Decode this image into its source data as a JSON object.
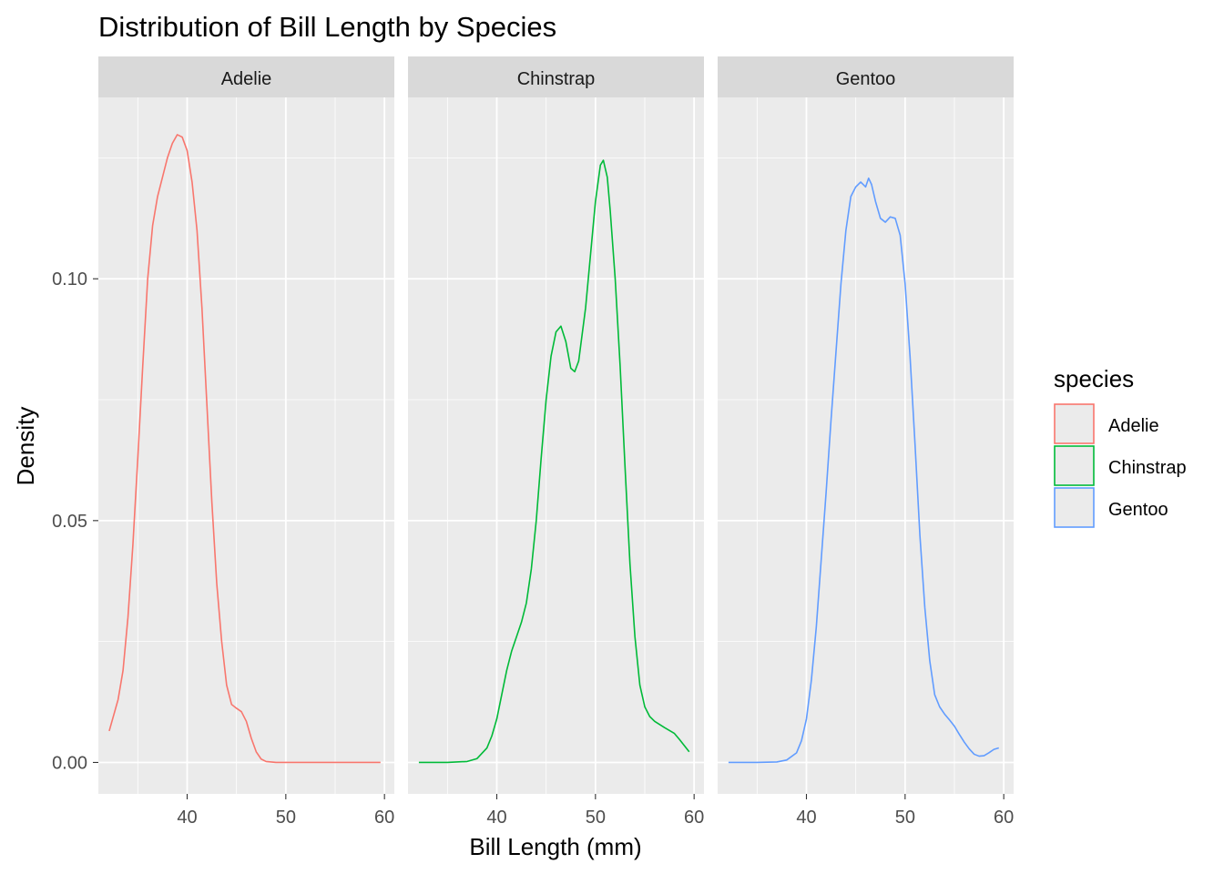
{
  "chart_data": {
    "type": "line",
    "title": "Distribution of Bill Length by Species",
    "xlabel": "Bill Length (mm)",
    "ylabel": "Density",
    "xlim": [
      31,
      61
    ],
    "ylim": [
      -0.0065,
      0.1375
    ],
    "x_ticks": [
      40,
      50,
      60
    ],
    "x_minor_ticks": [
      35,
      45,
      55
    ],
    "y_ticks": [
      0.0,
      0.05,
      0.1
    ],
    "y_tick_labels": [
      "0.00",
      "0.05",
      "0.10"
    ],
    "y_minor_ticks": [
      0.025,
      0.075,
      0.125
    ],
    "grid": true,
    "facet_by": "species",
    "legend": {
      "title": "species",
      "position": "right"
    },
    "series": [
      {
        "name": "Adelie",
        "color": "#F8766D",
        "points": [
          [
            32.1,
            0.0065
          ],
          [
            33.0,
            0.013
          ],
          [
            33.5,
            0.019
          ],
          [
            34.0,
            0.03
          ],
          [
            34.5,
            0.045
          ],
          [
            35.0,
            0.063
          ],
          [
            35.5,
            0.082
          ],
          [
            36.0,
            0.1
          ],
          [
            36.5,
            0.111
          ],
          [
            37.0,
            0.117
          ],
          [
            37.5,
            0.121
          ],
          [
            38.0,
            0.125
          ],
          [
            38.5,
            0.128
          ],
          [
            39.0,
            0.1298
          ],
          [
            39.5,
            0.1293
          ],
          [
            40.0,
            0.1265
          ],
          [
            40.5,
            0.12
          ],
          [
            41.0,
            0.11
          ],
          [
            41.5,
            0.094
          ],
          [
            42.0,
            0.074
          ],
          [
            42.5,
            0.054
          ],
          [
            43.0,
            0.037
          ],
          [
            43.5,
            0.025
          ],
          [
            44.0,
            0.016
          ],
          [
            44.5,
            0.012
          ],
          [
            45.0,
            0.0112
          ],
          [
            45.5,
            0.0105
          ],
          [
            46.0,
            0.0085
          ],
          [
            46.5,
            0.005
          ],
          [
            47.0,
            0.0022
          ],
          [
            47.5,
            0.0007
          ],
          [
            48.0,
            0.0002
          ],
          [
            49.0,
            0.0
          ],
          [
            52.0,
            0.0
          ],
          [
            56.0,
            0.0
          ],
          [
            59.6,
            0.0
          ]
        ]
      },
      {
        "name": "Chinstrap",
        "color": "#00BA38",
        "points": [
          [
            32.1,
            0.0
          ],
          [
            35.0,
            0.0
          ],
          [
            37.0,
            0.0002
          ],
          [
            38.0,
            0.0008
          ],
          [
            39.0,
            0.003
          ],
          [
            39.5,
            0.0055
          ],
          [
            40.0,
            0.009
          ],
          [
            40.5,
            0.014
          ],
          [
            41.0,
            0.019
          ],
          [
            41.5,
            0.023
          ],
          [
            42.0,
            0.026
          ],
          [
            42.5,
            0.029
          ],
          [
            43.0,
            0.033
          ],
          [
            43.5,
            0.04
          ],
          [
            44.0,
            0.05
          ],
          [
            44.5,
            0.063
          ],
          [
            45.0,
            0.075
          ],
          [
            45.5,
            0.084
          ],
          [
            46.0,
            0.089
          ],
          [
            46.5,
            0.0902
          ],
          [
            47.0,
            0.087
          ],
          [
            47.5,
            0.0815
          ],
          [
            47.9,
            0.0808
          ],
          [
            48.3,
            0.083
          ],
          [
            49.0,
            0.094
          ],
          [
            49.5,
            0.105
          ],
          [
            50.0,
            0.116
          ],
          [
            50.5,
            0.1235
          ],
          [
            50.8,
            0.1245
          ],
          [
            51.2,
            0.121
          ],
          [
            51.5,
            0.114
          ],
          [
            52.0,
            0.1
          ],
          [
            52.5,
            0.082
          ],
          [
            53.0,
            0.061
          ],
          [
            53.5,
            0.041
          ],
          [
            54.0,
            0.026
          ],
          [
            54.5,
            0.016
          ],
          [
            55.0,
            0.0115
          ],
          [
            55.5,
            0.0095
          ],
          [
            56.0,
            0.0085
          ],
          [
            57.0,
            0.0072
          ],
          [
            58.0,
            0.006
          ],
          [
            58.5,
            0.0048
          ],
          [
            59.0,
            0.0035
          ],
          [
            59.5,
            0.0022
          ]
        ]
      },
      {
        "name": "Gentoo",
        "color": "#619CFF",
        "points": [
          [
            32.1,
            0.0
          ],
          [
            35.0,
            0.0
          ],
          [
            37.0,
            0.0001
          ],
          [
            38.0,
            0.0005
          ],
          [
            39.0,
            0.002
          ],
          [
            39.5,
            0.0045
          ],
          [
            40.0,
            0.009
          ],
          [
            40.5,
            0.017
          ],
          [
            41.0,
            0.028
          ],
          [
            41.5,
            0.042
          ],
          [
            42.0,
            0.056
          ],
          [
            42.5,
            0.071
          ],
          [
            43.0,
            0.085
          ],
          [
            43.5,
            0.099
          ],
          [
            44.0,
            0.11
          ],
          [
            44.5,
            0.117
          ],
          [
            45.0,
            0.119
          ],
          [
            45.5,
            0.12
          ],
          [
            46.0,
            0.119
          ],
          [
            46.3,
            0.1208
          ],
          [
            46.6,
            0.1195
          ],
          [
            47.0,
            0.116
          ],
          [
            47.5,
            0.1125
          ],
          [
            48.0,
            0.1117
          ],
          [
            48.5,
            0.1128
          ],
          [
            49.0,
            0.1125
          ],
          [
            49.5,
            0.109
          ],
          [
            50.0,
            0.099
          ],
          [
            50.5,
            0.084
          ],
          [
            51.0,
            0.066
          ],
          [
            51.5,
            0.047
          ],
          [
            52.0,
            0.032
          ],
          [
            52.5,
            0.021
          ],
          [
            53.0,
            0.014
          ],
          [
            53.5,
            0.0115
          ],
          [
            54.0,
            0.01
          ],
          [
            54.5,
            0.0088
          ],
          [
            55.0,
            0.0075
          ],
          [
            55.5,
            0.0058
          ],
          [
            56.0,
            0.0042
          ],
          [
            56.5,
            0.0028
          ],
          [
            57.0,
            0.0017
          ],
          [
            57.5,
            0.0013
          ],
          [
            58.0,
            0.0014
          ],
          [
            58.5,
            0.002
          ],
          [
            59.0,
            0.0027
          ],
          [
            59.5,
            0.003
          ]
        ]
      }
    ]
  }
}
